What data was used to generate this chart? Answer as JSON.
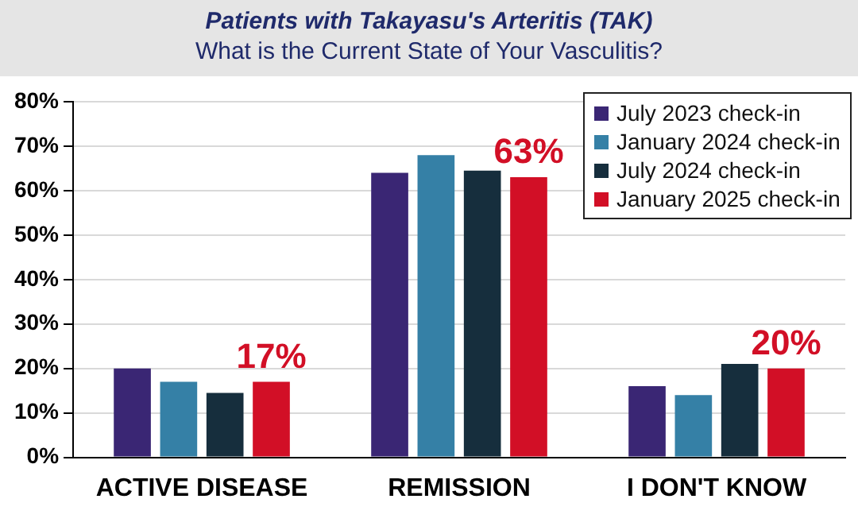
{
  "chart_data": {
    "type": "bar",
    "title": "Patients with Takayasu's Arteritis (TAK)",
    "subtitle": "What is the Current State of Your Vasculitis?",
    "categories": [
      "ACTIVE DISEASE",
      "REMISSION",
      "I DON'T KNOW"
    ],
    "series": [
      {
        "name": "July 2023 check-in",
        "color": "#3a2674",
        "values": [
          20,
          64,
          16
        ]
      },
      {
        "name": "January 2024 check-in",
        "color": "#3580a6",
        "values": [
          17,
          68,
          14
        ]
      },
      {
        "name": "July 2024 check-in",
        "color": "#162e3d",
        "values": [
          14.5,
          64.5,
          21
        ]
      },
      {
        "name": "January 2025 check-in",
        "color": "#d20f26",
        "values": [
          17,
          63,
          20
        ],
        "value_labels": [
          "17%",
          "63%",
          "20%"
        ]
      }
    ],
    "ylim": [
      0,
      80
    ],
    "yticks": [
      {
        "value": 0,
        "label": "0%"
      },
      {
        "value": 10,
        "label": "10%"
      },
      {
        "value": 20,
        "label": "20%"
      },
      {
        "value": 30,
        "label": "30%"
      },
      {
        "value": 40,
        "label": "40%"
      },
      {
        "value": 50,
        "label": "50%"
      },
      {
        "value": 60,
        "label": "60%"
      },
      {
        "value": 70,
        "label": "70%"
      },
      {
        "value": 80,
        "label": "80%"
      }
    ],
    "grid": "y",
    "legend": "top right"
  }
}
